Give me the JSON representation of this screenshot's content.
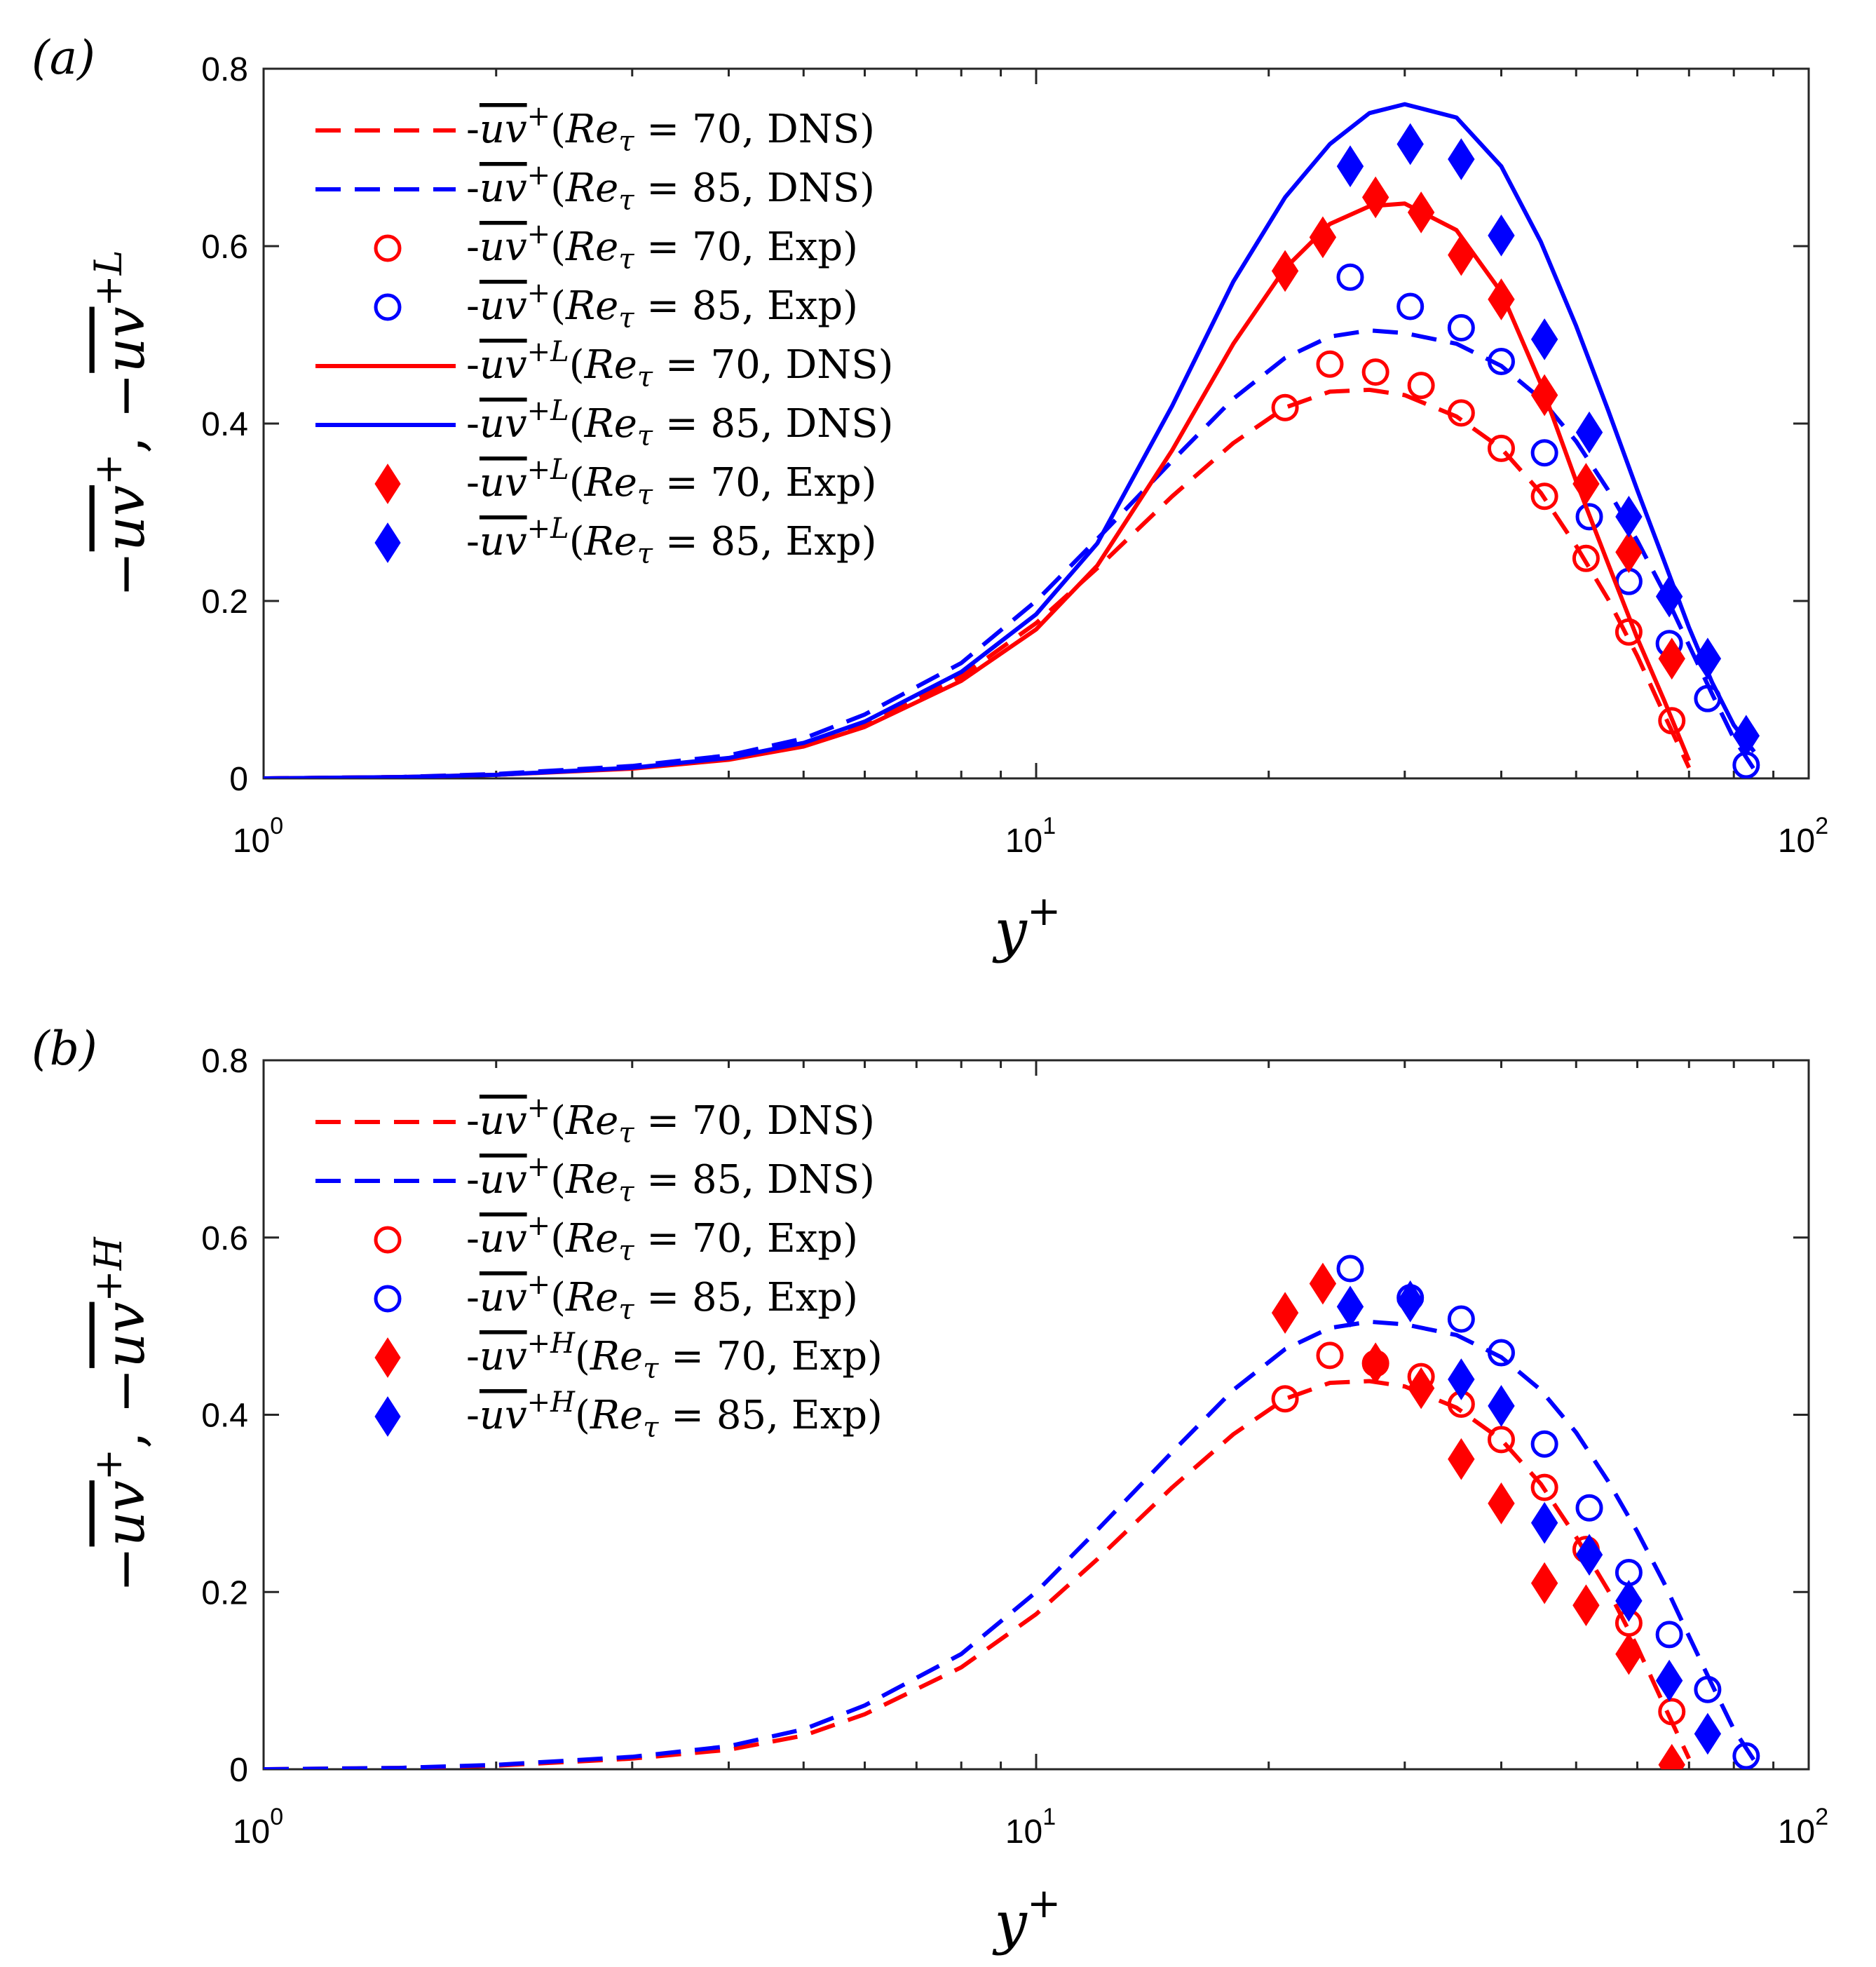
{
  "chart_data": [
    {
      "type": "line",
      "panel_label": "(a)",
      "xlabel": "y+",
      "ylabel": "−uv+, −uv+L",
      "xscale": "log",
      "xlim": [
        1,
        100
      ],
      "ylim": [
        0,
        0.8
      ],
      "grid": false,
      "legend_position": "top-left",
      "x_ticks": [
        {
          "base": "10",
          "exp": "0"
        },
        {
          "base": "10",
          "exp": "1"
        },
        {
          "base": "10",
          "exp": "2"
        }
      ],
      "y_ticks": [
        "0",
        "0.2",
        "0.4",
        "0.6",
        "0.8"
      ],
      "series": [
        {
          "name": "-uv+(Reτ = 70, DNS)",
          "legend": {
            "sym": "uv",
            "sup": "+",
            "re": "70",
            "src": "DNS"
          },
          "style": "dashed",
          "marker": "none",
          "color": "#ff0000",
          "x": [
            1,
            1.5,
            2,
            3,
            4,
            5,
            6,
            8,
            10,
            12,
            15,
            18,
            21,
            24,
            27,
            30,
            35,
            40,
            45,
            50,
            55,
            60,
            65,
            70
          ],
          "y": [
            0.0,
            0.0015,
            0.004,
            0.012,
            0.022,
            0.038,
            0.062,
            0.115,
            0.175,
            0.237,
            0.318,
            0.378,
            0.418,
            0.436,
            0.438,
            0.432,
            0.408,
            0.372,
            0.322,
            0.262,
            0.202,
            0.138,
            0.072,
            0.012
          ]
        },
        {
          "name": "-uv+(Reτ = 85, DNS)",
          "legend": {
            "sym": "uv",
            "sup": "+",
            "re": "85",
            "src": "DNS"
          },
          "style": "dashed",
          "marker": "none",
          "color": "#0000ff",
          "x": [
            1,
            1.5,
            2,
            3,
            4,
            5,
            6,
            8,
            10,
            12,
            15,
            18,
            21,
            24,
            27,
            30,
            35,
            40,
            45,
            50,
            55,
            60,
            65,
            70,
            75,
            80,
            85
          ],
          "y": [
            0.0,
            0.0015,
            0.005,
            0.014,
            0.026,
            0.045,
            0.072,
            0.13,
            0.2,
            0.27,
            0.358,
            0.428,
            0.474,
            0.498,
            0.505,
            0.502,
            0.49,
            0.465,
            0.428,
            0.38,
            0.325,
            0.268,
            0.21,
            0.15,
            0.095,
            0.045,
            0.01
          ]
        },
        {
          "name": "-uv+(Reτ = 70, Exp)",
          "legend": {
            "sym": "uv",
            "sup": "+",
            "re": "70",
            "src": "Exp"
          },
          "style": "none",
          "marker": "circle",
          "color": "#ff0000",
          "x": [
            21,
            24,
            27.5,
            31.5,
            35.5,
            40,
            45.5,
            51.5,
            58.5,
            66.5
          ],
          "y": [
            0.418,
            0.467,
            0.458,
            0.443,
            0.412,
            0.372,
            0.318,
            0.248,
            0.165,
            0.065
          ]
        },
        {
          "name": "-uv+(Reτ = 85, Exp)",
          "legend": {
            "sym": "uv",
            "sup": "+",
            "re": "85",
            "src": "Exp"
          },
          "style": "none",
          "marker": "circle",
          "color": "#0000ff",
          "x": [
            25.5,
            30.5,
            35.5,
            40,
            45.5,
            52,
            58.5,
            66,
            74,
            83
          ],
          "y": [
            0.565,
            0.532,
            0.508,
            0.47,
            0.367,
            0.295,
            0.222,
            0.152,
            0.09,
            0.015
          ]
        },
        {
          "name": "-uv+L(Reτ = 70, DNS)",
          "legend": {
            "sym": "uv",
            "sup": "+L",
            "re": "70",
            "src": "DNS"
          },
          "style": "solid",
          "marker": "none",
          "color": "#ff0000",
          "x": [
            1,
            1.5,
            2,
            3,
            4,
            5,
            6,
            8,
            10,
            12,
            15,
            18,
            21,
            24,
            27,
            30,
            35,
            40,
            45,
            50,
            55,
            60,
            65,
            70
          ],
          "y": [
            0.0,
            0.0015,
            0.004,
            0.011,
            0.021,
            0.036,
            0.058,
            0.11,
            0.168,
            0.24,
            0.37,
            0.49,
            0.575,
            0.625,
            0.645,
            0.648,
            0.618,
            0.548,
            0.445,
            0.335,
            0.242,
            0.158,
            0.088,
            0.02
          ]
        },
        {
          "name": "-uv+L(Reτ = 85, DNS)",
          "legend": {
            "sym": "uv",
            "sup": "+L",
            "re": "85",
            "src": "DNS"
          },
          "style": "solid",
          "marker": "none",
          "color": "#0000ff",
          "x": [
            1,
            1.5,
            2,
            3,
            4,
            5,
            6,
            8,
            10,
            12,
            15,
            18,
            21,
            24,
            27,
            30,
            35,
            40,
            45,
            50,
            55,
            60,
            65,
            70,
            75,
            80,
            85
          ],
          "y": [
            0.0,
            0.0015,
            0.004,
            0.012,
            0.023,
            0.04,
            0.064,
            0.12,
            0.185,
            0.265,
            0.42,
            0.56,
            0.655,
            0.715,
            0.75,
            0.76,
            0.745,
            0.69,
            0.605,
            0.51,
            0.415,
            0.325,
            0.245,
            0.17,
            0.108,
            0.06,
            0.03
          ]
        },
        {
          "name": "-uv+L(Reτ = 70, Exp)",
          "legend": {
            "sym": "uv",
            "sup": "+L",
            "re": "70",
            "src": "Exp"
          },
          "style": "none",
          "marker": "diamond",
          "color": "#ff0000",
          "x": [
            21,
            23.5,
            27.5,
            31.5,
            35.5,
            40,
            45.5,
            51.5,
            58.5,
            66.5
          ],
          "y": [
            0.572,
            0.61,
            0.655,
            0.638,
            0.59,
            0.54,
            0.432,
            0.332,
            0.255,
            0.135
          ]
        },
        {
          "name": "-uv+L(Reτ = 85, Exp)",
          "legend": {
            "sym": "uv",
            "sup": "+L",
            "re": "85",
            "src": "Exp"
          },
          "style": "none",
          "marker": "diamond",
          "color": "#0000ff",
          "x": [
            25.5,
            30.5,
            35.5,
            40,
            45.5,
            52,
            58.5,
            66,
            74,
            83
          ],
          "y": [
            0.69,
            0.715,
            0.698,
            0.612,
            0.495,
            0.39,
            0.295,
            0.205,
            0.135,
            0.048
          ]
        }
      ]
    },
    {
      "type": "line",
      "panel_label": "(b)",
      "xlabel": "y+",
      "ylabel": "−uv+, −uv+H",
      "xscale": "log",
      "xlim": [
        1,
        100
      ],
      "ylim": [
        0,
        0.8
      ],
      "grid": false,
      "legend_position": "top-left",
      "x_ticks": [
        {
          "base": "10",
          "exp": "0"
        },
        {
          "base": "10",
          "exp": "1"
        },
        {
          "base": "10",
          "exp": "2"
        }
      ],
      "y_ticks": [
        "0",
        "0.2",
        "0.4",
        "0.6",
        "0.8"
      ],
      "series": [
        {
          "name": "-uv+(Reτ = 70, DNS)",
          "legend": {
            "sym": "uv",
            "sup": "+",
            "re": "70",
            "src": "DNS"
          },
          "style": "dashed",
          "marker": "none",
          "color": "#ff0000",
          "x": [
            1,
            1.5,
            2,
            3,
            4,
            5,
            6,
            8,
            10,
            12,
            15,
            18,
            21,
            24,
            27,
            30,
            35,
            40,
            45,
            50,
            55,
            60,
            65,
            70
          ],
          "y": [
            0.0,
            0.0015,
            0.004,
            0.012,
            0.022,
            0.038,
            0.062,
            0.115,
            0.175,
            0.237,
            0.318,
            0.378,
            0.418,
            0.436,
            0.438,
            0.432,
            0.408,
            0.372,
            0.322,
            0.262,
            0.202,
            0.138,
            0.072,
            0.012
          ]
        },
        {
          "name": "-uv+(Reτ = 85, DNS)",
          "legend": {
            "sym": "uv",
            "sup": "+",
            "re": "85",
            "src": "DNS"
          },
          "style": "dashed",
          "marker": "none",
          "color": "#0000ff",
          "x": [
            1,
            1.5,
            2,
            3,
            4,
            5,
            6,
            8,
            10,
            12,
            15,
            18,
            21,
            24,
            27,
            30,
            35,
            40,
            45,
            50,
            55,
            60,
            65,
            70,
            75,
            80,
            85
          ],
          "y": [
            0.0,
            0.0015,
            0.005,
            0.014,
            0.026,
            0.045,
            0.072,
            0.13,
            0.2,
            0.27,
            0.358,
            0.428,
            0.474,
            0.498,
            0.505,
            0.502,
            0.49,
            0.465,
            0.428,
            0.38,
            0.325,
            0.268,
            0.21,
            0.15,
            0.095,
            0.045,
            0.01
          ]
        },
        {
          "name": "-uv+(Reτ = 70, Exp)",
          "legend": {
            "sym": "uv",
            "sup": "+",
            "re": "70",
            "src": "Exp"
          },
          "style": "none",
          "marker": "circle",
          "color": "#ff0000",
          "x": [
            21,
            24,
            27.5,
            31.5,
            35.5,
            40,
            45.5,
            51.5,
            58.5,
            66.5
          ],
          "y": [
            0.418,
            0.467,
            0.458,
            0.443,
            0.412,
            0.372,
            0.318,
            0.248,
            0.165,
            0.065
          ]
        },
        {
          "name": "-uv+(Reτ = 85, Exp)",
          "legend": {
            "sym": "uv",
            "sup": "+",
            "re": "85",
            "src": "Exp"
          },
          "style": "none",
          "marker": "circle",
          "color": "#0000ff",
          "x": [
            25.5,
            30.5,
            35.5,
            40,
            45.5,
            52,
            58.5,
            66,
            74,
            83
          ],
          "y": [
            0.565,
            0.532,
            0.508,
            0.47,
            0.367,
            0.295,
            0.222,
            0.152,
            0.09,
            0.015
          ]
        },
        {
          "name": "-uv+H(Reτ = 70, Exp)",
          "legend": {
            "sym": "uv",
            "sup": "+H",
            "re": "70",
            "src": "Exp"
          },
          "style": "none",
          "marker": "diamond",
          "color": "#ff0000",
          "x": [
            21,
            23.5,
            27.5,
            31.5,
            35.5,
            40,
            45.5,
            51.5,
            58.5,
            66.5
          ],
          "y": [
            0.515,
            0.548,
            0.458,
            0.43,
            0.35,
            0.3,
            0.21,
            0.185,
            0.13,
            0.005
          ]
        },
        {
          "name": "-uv+H(Reτ = 85, Exp)",
          "legend": {
            "sym": "uv",
            "sup": "+H",
            "re": "85",
            "src": "Exp"
          },
          "style": "none",
          "marker": "diamond",
          "color": "#0000ff",
          "x": [
            25.5,
            30.5,
            35.5,
            40,
            45.5,
            52,
            58.5,
            66,
            74
          ],
          "y": [
            0.522,
            0.528,
            0.44,
            0.41,
            0.278,
            0.242,
            0.19,
            0.1,
            0.04
          ]
        }
      ]
    }
  ]
}
